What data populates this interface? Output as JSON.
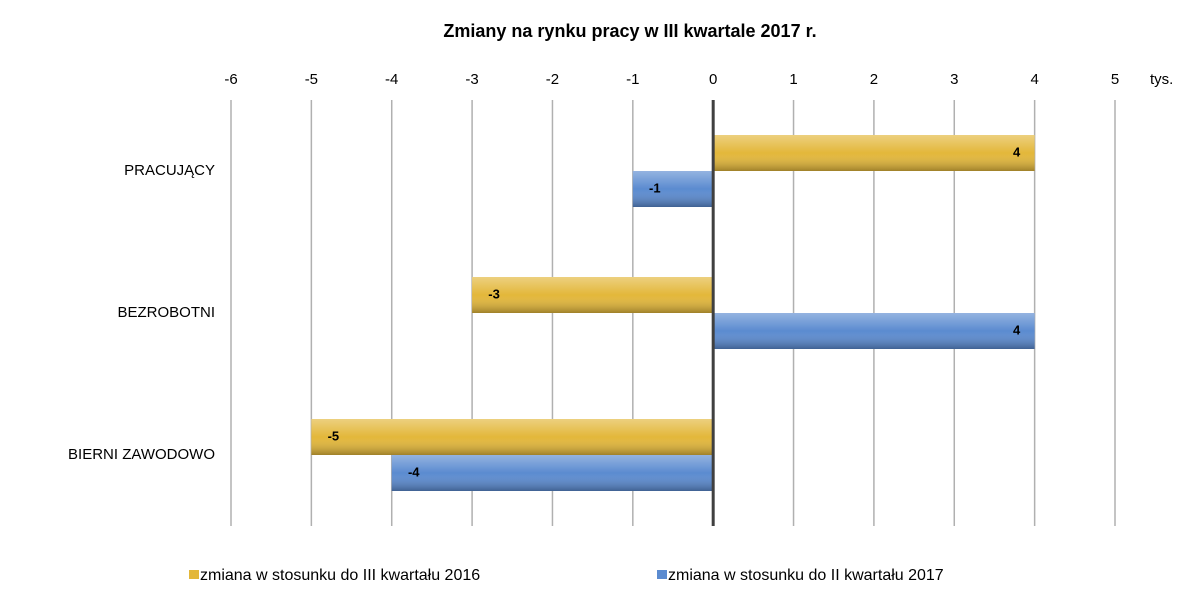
{
  "chart_data": {
    "type": "hbar",
    "title": "Zmiany na rynku pracy w III kwartale 2017 r.",
    "x_unit": "tys.",
    "categories": [
      "PRACUJĄCY",
      "BEZROBOTNI",
      "BIERNI ZAWODOWO"
    ],
    "series": [
      {
        "name": "zmiana w stosunku do III kwartału 2016",
        "color": "#e3b73a",
        "values": [
          4,
          -3,
          -5
        ]
      },
      {
        "name": "zmiana w stosunku do II kwartału 2017",
        "color": "#5b8bd0",
        "values": [
          -1,
          4,
          -4
        ]
      }
    ],
    "xlim": [
      -6,
      5
    ],
    "xticks": [
      -6,
      -5,
      -4,
      -3,
      -2,
      -1,
      0,
      1,
      2,
      3,
      4,
      5
    ],
    "grid": true,
    "legend": "bottom"
  }
}
